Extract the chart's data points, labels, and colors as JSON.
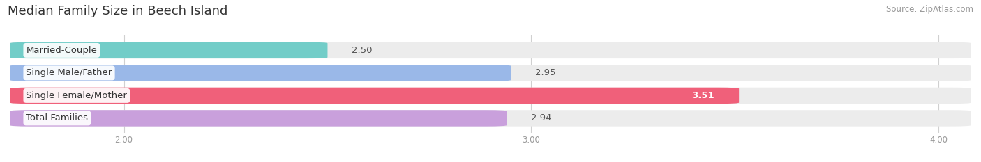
{
  "title": "Median Family Size in Beech Island",
  "source": "Source: ZipAtlas.com",
  "categories": [
    "Married-Couple",
    "Single Male/Father",
    "Single Female/Mother",
    "Total Families"
  ],
  "values": [
    2.5,
    2.95,
    3.51,
    2.94
  ],
  "bar_colors": [
    "#72cdc8",
    "#9ab8e8",
    "#f0607a",
    "#c9a0dc"
  ],
  "bar_bg_color": "#ececec",
  "xlim": [
    1.72,
    4.08
  ],
  "xticks": [
    2.0,
    3.0,
    4.0
  ],
  "xtick_labels": [
    "2.00",
    "3.00",
    "4.00"
  ],
  "bg_color": "#ffffff",
  "bar_height": 0.72,
  "label_fontsize": 9.5,
  "value_fontsize": 9.5,
  "title_fontsize": 13,
  "source_fontsize": 8.5
}
